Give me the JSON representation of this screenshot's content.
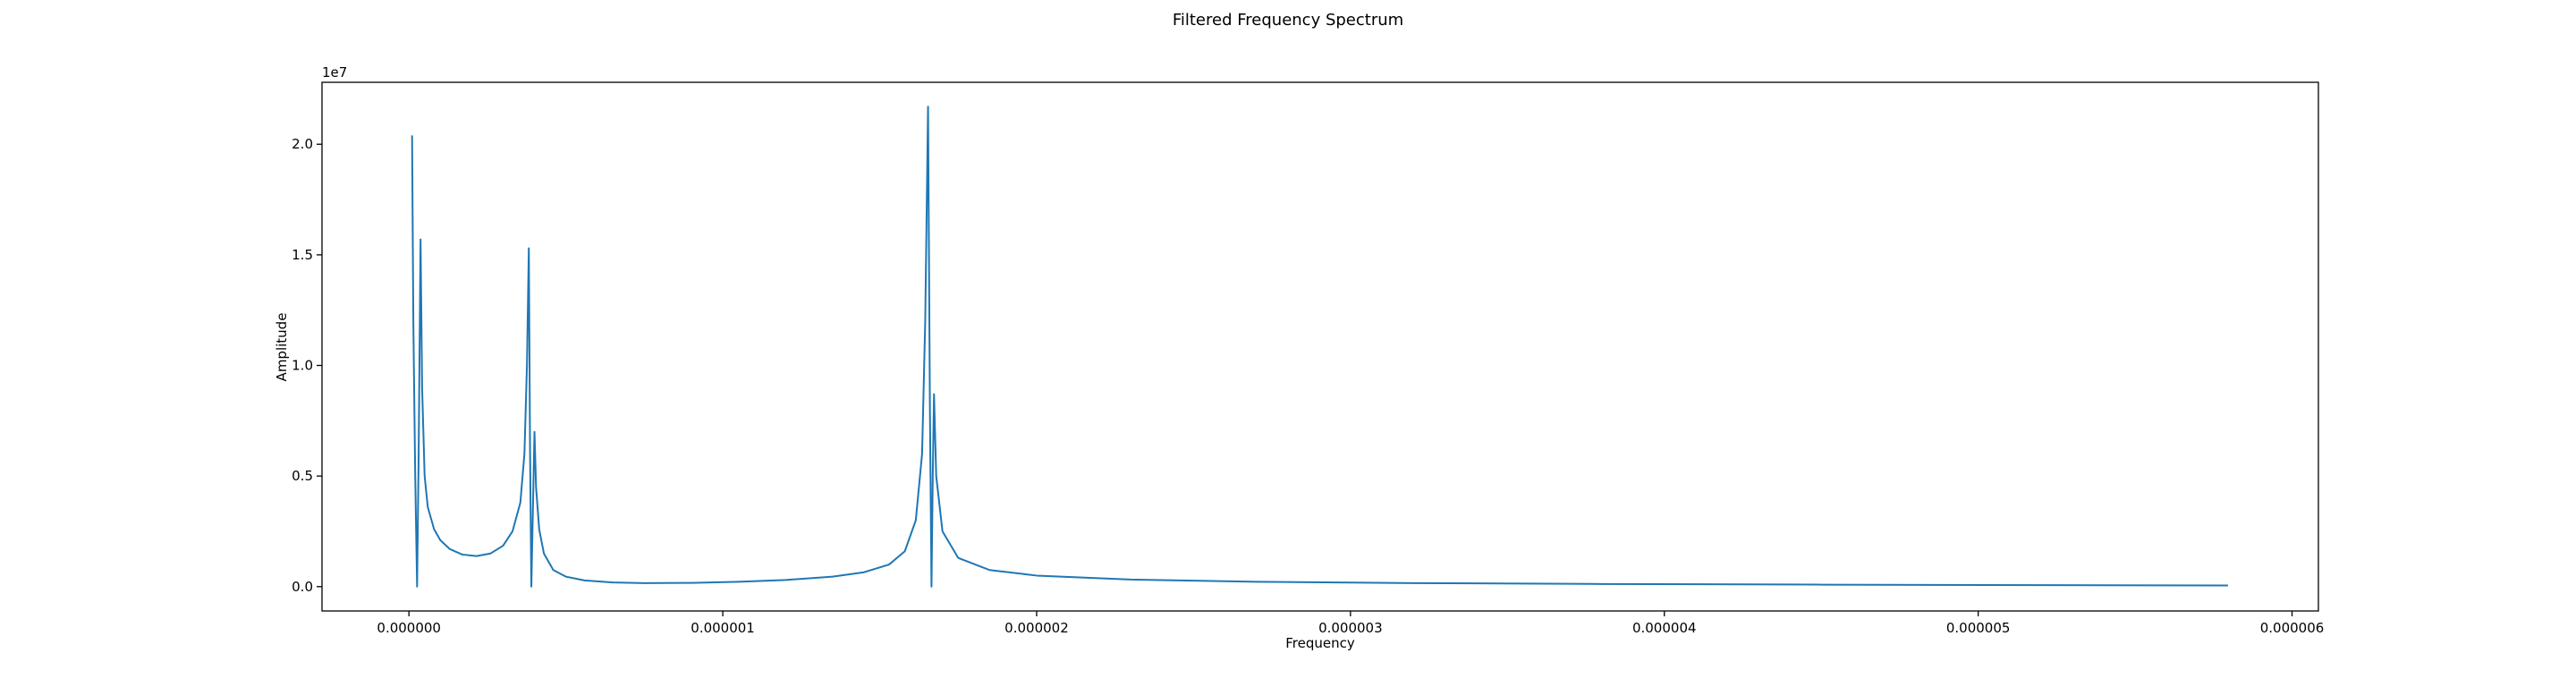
{
  "chart_data": {
    "type": "line",
    "title": "Filtered Frequency Spectrum",
    "x_label": "Frequency",
    "y_label": "Amplitude",
    "y_offset_label": "1e7",
    "x": [
      1e-08,
      1.4e-08,
      2e-08,
      2.6e-08,
      3.1e-08,
      3.7e-08,
      4.2e-08,
      5e-08,
      6e-08,
      8e-08,
      1e-07,
      1.3e-07,
      1.7e-07,
      2.15e-07,
      2.6e-07,
      3e-07,
      3.3e-07,
      3.55e-07,
      3.68e-07,
      3.76e-07,
      3.82e-07,
      3.86e-07,
      3.9e-07,
      3.95e-07,
      4e-07,
      4.05e-07,
      4.15e-07,
      4.3e-07,
      4.6e-07,
      5e-07,
      5.6e-07,
      6.5e-07,
      7.5e-07,
      9e-07,
      1.05e-06,
      1.2e-06,
      1.35e-06,
      1.45e-06,
      1.53e-06,
      1.58e-06,
      1.615e-06,
      1.635e-06,
      1.645e-06,
      1.654e-06,
      1.66e-06,
      1.665e-06,
      1.669e-06,
      1.673e-06,
      1.68e-06,
      1.7e-06,
      1.75e-06,
      1.85e-06,
      2e-06,
      2.3e-06,
      2.7e-06,
      3.2e-06,
      3.8e-06,
      4.5e-06,
      5.2e-06,
      5.796e-06
    ],
    "series": [
      {
        "color": "#1f77b4",
        "values": [
          20400000,
          12000000,
          5000000,
          0,
          6000000,
          15700000,
          9000000,
          5000000,
          3600000,
          2600000,
          2100000,
          1700000,
          1450000,
          1380000,
          1500000,
          1850000,
          2500000,
          3800000,
          6000000,
          10000000,
          15300000,
          6000000,
          0,
          3500000,
          7000000,
          4500000,
          2600000,
          1500000,
          750000,
          450000,
          280000,
          190000,
          160000,
          170000,
          220000,
          300000,
          450000,
          650000,
          1000000,
          1600000,
          3000000,
          6000000,
          12000000,
          21700000,
          8000000,
          0,
          5000000,
          8700000,
          5000000,
          2500000,
          1300000,
          750000,
          500000,
          320000,
          220000,
          160000,
          120000,
          90000,
          70000,
          50000
        ]
      }
    ],
    "xlim": [
      -2.77e-07,
      6.084e-06
    ],
    "ylim": [
      -1100000,
      22800000
    ],
    "xticks": [
      {
        "value": 0,
        "label": "0.000000"
      },
      {
        "value": 1e-06,
        "label": "0.000001"
      },
      {
        "value": 2e-06,
        "label": "0.000002"
      },
      {
        "value": 3e-06,
        "label": "0.000003"
      },
      {
        "value": 4e-06,
        "label": "0.000004"
      },
      {
        "value": 5e-06,
        "label": "0.000005"
      },
      {
        "value": 6e-06,
        "label": "0.000006"
      }
    ],
    "yticks": [
      {
        "value": 0,
        "label": "0.0"
      },
      {
        "value": 5000000,
        "label": "0.5"
      },
      {
        "value": 10000000,
        "label": "1.0"
      },
      {
        "value": 15000000,
        "label": "1.5"
      },
      {
        "value": 20000000,
        "label": "2.0"
      }
    ],
    "grid": false
  }
}
